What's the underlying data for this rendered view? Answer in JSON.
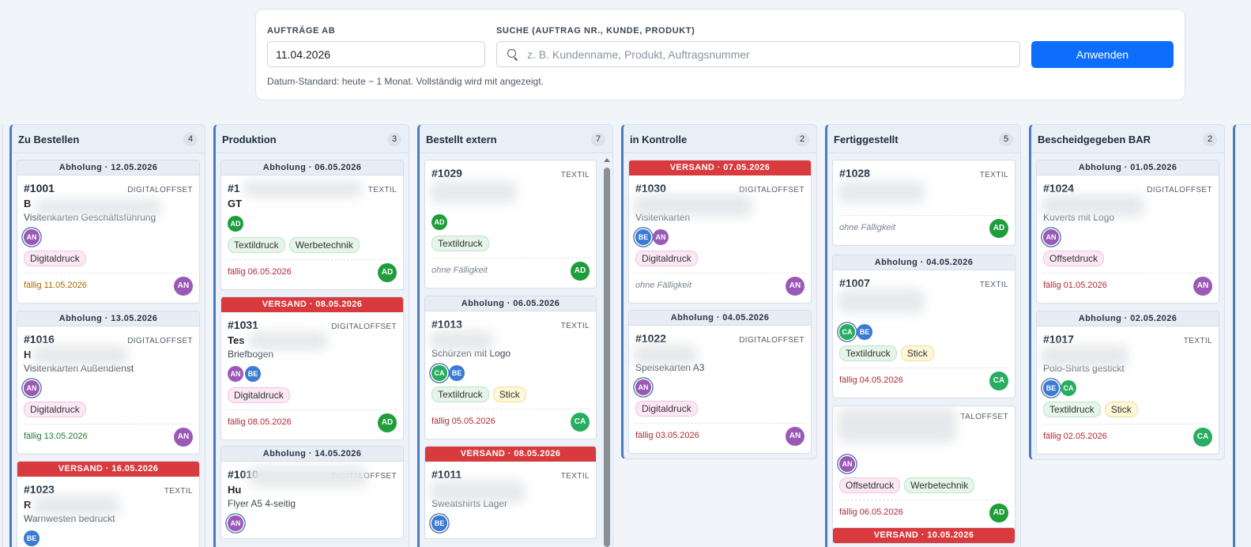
{
  "filter": {
    "date_label": "AUFTRÄGE AB",
    "date_value": "11.04.2026",
    "search_label": "SUCHE (AUFTRAG NR., KUNDE, PRODUKT)",
    "search_placeholder": "z. B. Kundenname, Produkt, Auftragsnummer",
    "apply_label": "Anwenden",
    "hint": "Datum-Standard: heute − 1 Monat. Vollständig wird mit angezeigt."
  },
  "colors": {
    "accent": "#0d6efd",
    "ship": "#d83a3e",
    "column_border": "#4a7bc5"
  },
  "columns": [
    {
      "title": "Zu Bestellen",
      "count": "4",
      "cards": [
        {
          "banner": "Abholung · 12.05.2026",
          "number": "#1001",
          "type": "DIGITALOFFSET",
          "customer": "B",
          "product": "Visitenkarten Geschäftsführung",
          "tags": [
            "Digitaldruck"
          ],
          "due": "fällig 11.05.2026"
        },
        {
          "banner": "Abholung · 13.05.2026",
          "number": "#1016",
          "type": "DIGITALOFFSET",
          "customer": "H",
          "product": "Visitenkarten Außendienst",
          "tags": [
            "Digitaldruck"
          ],
          "due": "fällig 13.05.2026"
        },
        {
          "banner": "VERSAND · 16.05.2026",
          "number": "#1023",
          "type": "TEXTIL",
          "customer": "R",
          "product": "Warnwesten bedruckt"
        }
      ]
    },
    {
      "title": "Produktion",
      "count": "3",
      "cards": [
        {
          "banner": "Abholung · 06.05.2026",
          "number": "#1",
          "type": "TEXTIL",
          "customer": "GT",
          "tags": [
            "Textildruck",
            "Werbetechnik"
          ],
          "due": "fällig 06.05.2026"
        },
        {
          "banner": "VERSAND · 08.05.2026",
          "number": "#1031",
          "type": "DIGITALOFFSET",
          "customer": "Tes",
          "product": "Briefbogen",
          "tags": [
            "Digitaldruck"
          ],
          "due": "fällig 08.05.2026"
        },
        {
          "banner": "Abholung · 14.05.2026",
          "number": "#1010",
          "type": "DIGITALOFFSET",
          "customer": "Hu",
          "product": "Flyer A5 4-seitig"
        }
      ]
    },
    {
      "title": "Bestellt extern",
      "count": "7",
      "cards": [
        {
          "number": "#1029",
          "type": "TEXTIL",
          "tags": [
            "Textildruck"
          ],
          "due": "ohne Fälligkeit"
        },
        {
          "banner": "Abholung · 06.05.2026",
          "number": "#1013",
          "type": "TEXTIL",
          "product": "Schürzen mit Logo",
          "tags": [
            "Textildruck",
            "Stick"
          ],
          "due": "fällig 05.05.2026"
        },
        {
          "banner": "VERSAND · 08.05.2026",
          "number": "#1011",
          "type": "TEXTIL",
          "product": "Sweatshirts Lager"
        }
      ]
    },
    {
      "title": "in Kontrolle",
      "count": "2",
      "cards": [
        {
          "banner": "VERSAND · 07.05.2026",
          "number": "#1030",
          "type": "DIGITALOFFSET",
          "product": "Visitenkarten",
          "tags": [
            "Digitaldruck"
          ],
          "due": "ohne Fälligkeit"
        },
        {
          "banner": "Abholung · 04.05.2026",
          "number": "#1022",
          "type": "DIGITALOFFSET",
          "product": "Speisekarten A3",
          "tags": [
            "Digitaldruck"
          ],
          "due": "fällig 03.05.2026"
        }
      ]
    },
    {
      "title": "Fertiggestellt",
      "count": "5",
      "cards": [
        {
          "number": "#1028",
          "type": "TEXTIL",
          "due": "ohne Fälligkeit"
        },
        {
          "banner": "Abholung · 04.05.2026",
          "number": "#1007",
          "type": "TEXTIL",
          "tags": [
            "Textildruck",
            "Stick"
          ],
          "due": "fällig 04.05.2026"
        },
        {
          "type": "TALOFFSET",
          "tags": [
            "Offsetdruck",
            "Werbetechnik"
          ],
          "due": "fällig 06.05.2026"
        },
        {
          "banner": "VERSAND · 10.05.2026"
        }
      ]
    },
    {
      "title": "Bescheidgegeben BAR",
      "count": "2",
      "cards": [
        {
          "banner": "Abholung · 01.05.2026",
          "number": "#1024",
          "type": "DIGITALOFFSET",
          "product": "Kuverts mit Logo",
          "tags": [
            "Offsetdruck"
          ],
          "due": "fällig 01.05.2026"
        },
        {
          "banner": "Abholung · 02.05.2026",
          "number": "#1017",
          "type": "TEXTIL",
          "product": "Polo-Shirts gestickt",
          "tags": [
            "Textildruck",
            "Stick"
          ],
          "due": "fällig 02.05.2026"
        }
      ]
    }
  ],
  "initials": {
    "an": "AN",
    "ad": "AD",
    "be": "BE",
    "ca": "CA"
  }
}
